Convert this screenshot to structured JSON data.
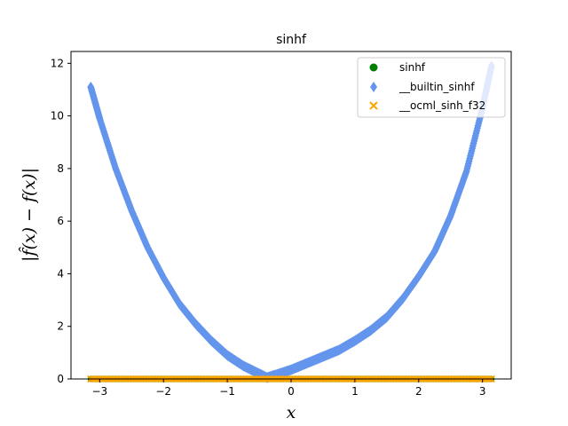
{
  "chart_data": {
    "type": "scatter",
    "title": "sinhf",
    "xlabel": "x",
    "ylabel": "|f̂(x) − f(x)|",
    "xlim": [
      -3.45,
      3.45
    ],
    "ylim": [
      0,
      12.45
    ],
    "xticks": [
      -3,
      -2,
      -1,
      0,
      1,
      2,
      3
    ],
    "xtick_labels": [
      "−3",
      "−2",
      "−1",
      "0",
      "1",
      "2",
      "3"
    ],
    "yticks": [
      0,
      2,
      4,
      6,
      8,
      10,
      12
    ],
    "ytick_labels": [
      "0",
      "2",
      "4",
      "6",
      "8",
      "10",
      "12"
    ],
    "grid": false,
    "legend_position": "top-right",
    "series": [
      {
        "name": "sinhf",
        "marker": "circle",
        "color": "#008000",
        "x": [
          -3.14,
          3.14
        ],
        "y": [
          0,
          0
        ]
      },
      {
        "name": "__builtin_sinhf",
        "marker": "diamond",
        "color": "#6495ED",
        "x": [
          -3.14,
          -3.0,
          -2.75,
          -2.5,
          -2.25,
          -2.0,
          -1.75,
          -1.5,
          -1.25,
          -1.0,
          -0.75,
          -0.5,
          -0.38,
          -0.25,
          0.0,
          0.25,
          0.5,
          0.75,
          1.0,
          1.25,
          1.5,
          1.75,
          2.0,
          2.25,
          2.5,
          2.75,
          3.0,
          3.14
        ],
        "y": [
          11.1,
          9.9,
          8.0,
          6.4,
          5.0,
          3.85,
          2.85,
          2.1,
          1.45,
          0.9,
          0.5,
          0.2,
          0.05,
          0.15,
          0.35,
          0.6,
          0.85,
          1.1,
          1.45,
          1.85,
          2.35,
          3.05,
          3.9,
          4.85,
          6.2,
          7.9,
          10.3,
          11.9
        ]
      },
      {
        "name": "__ocml_sinh_f32",
        "marker": "x",
        "color": "#FFA500",
        "x": [
          -3.14,
          3.14
        ],
        "y": [
          0,
          0
        ]
      }
    ]
  }
}
